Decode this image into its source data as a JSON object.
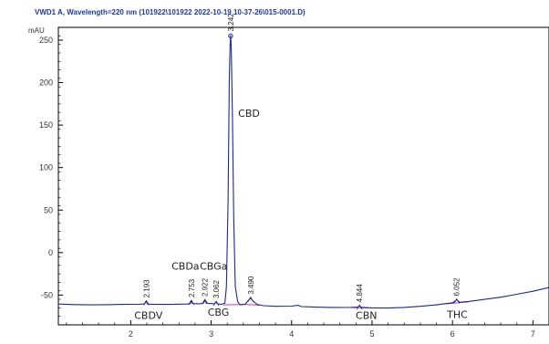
{
  "chart_data": {
    "type": "line",
    "title": "VWD1 A, Wavelength=220 nm (101922\\101922 2022-10-19 10-37-26\\015-0001.D)",
    "ylabel": "mAU",
    "xlabel": "",
    "xlim": [
      1.1,
      7.2
    ],
    "ylim": [
      -85,
      265
    ],
    "x_ticks": [
      2,
      3,
      4,
      5,
      6,
      7
    ],
    "y_ticks": [
      -50,
      0,
      50,
      100,
      150,
      200,
      250
    ],
    "grid": false,
    "colors": {
      "trace": "#1f2a7a",
      "baseline": "#cc33cc",
      "title": "#1f3a93",
      "axis": "#000000"
    },
    "series": [
      {
        "values": [
          [
            1.1,
            -60.5
          ],
          [
            1.3,
            -61.2
          ],
          [
            1.5,
            -61.5
          ],
          [
            1.7,
            -61.3
          ],
          [
            1.9,
            -61.0
          ],
          [
            2.1,
            -60.8
          ],
          [
            2.17,
            -60.4
          ],
          [
            2.19,
            -57.5
          ],
          [
            2.21,
            -60.6
          ],
          [
            2.3,
            -60.9
          ],
          [
            2.5,
            -61.0
          ],
          [
            2.7,
            -60.5
          ],
          [
            2.74,
            -60.2
          ],
          [
            2.753,
            -57.0
          ],
          [
            2.77,
            -60.0
          ],
          [
            2.85,
            -60.2
          ],
          [
            2.9,
            -59.8
          ],
          [
            2.922,
            -56.0
          ],
          [
            2.94,
            -59.6
          ],
          [
            3.0,
            -60.0
          ],
          [
            3.04,
            -60.2
          ],
          [
            3.062,
            -58.2
          ],
          [
            3.08,
            -60.4
          ],
          [
            3.13,
            -60.8
          ],
          [
            3.17,
            -59.5
          ],
          [
            3.19,
            -40.0
          ],
          [
            3.21,
            60.0
          ],
          [
            3.225,
            200.0
          ],
          [
            3.235,
            243.0
          ],
          [
            3.242,
            256.0
          ],
          [
            3.25,
            240.0
          ],
          [
            3.265,
            160.0
          ],
          [
            3.28,
            40.0
          ],
          [
            3.3,
            -40.0
          ],
          [
            3.33,
            -58.0
          ],
          [
            3.36,
            -61.5
          ],
          [
            3.42,
            -60.8
          ],
          [
            3.46,
            -56.5
          ],
          [
            3.49,
            -53.5
          ],
          [
            3.52,
            -57.0
          ],
          [
            3.57,
            -61.0
          ],
          [
            3.65,
            -62.5
          ],
          [
            3.8,
            -63.2
          ],
          [
            4.0,
            -63.0
          ],
          [
            4.08,
            -62.0
          ],
          [
            4.12,
            -63.5
          ],
          [
            4.3,
            -64.2
          ],
          [
            4.5,
            -64.5
          ],
          [
            4.7,
            -64.6
          ],
          [
            4.82,
            -64.2
          ],
          [
            4.844,
            -62.8
          ],
          [
            4.87,
            -64.4
          ],
          [
            5.0,
            -65.0
          ],
          [
            5.2,
            -65.2
          ],
          [
            5.4,
            -64.5
          ],
          [
            5.6,
            -63.2
          ],
          [
            5.8,
            -61.5
          ],
          [
            6.0,
            -59.0
          ],
          [
            6.052,
            -55.5
          ],
          [
            6.09,
            -58.5
          ],
          [
            6.2,
            -57.5
          ],
          [
            6.4,
            -55.0
          ],
          [
            6.6,
            -52.5
          ],
          [
            6.8,
            -49.0
          ],
          [
            7.0,
            -45.5
          ],
          [
            7.2,
            -41.0
          ]
        ]
      }
    ],
    "peaks": [
      {
        "rt": 2.193,
        "label": "2.193",
        "y": -57.5
      },
      {
        "rt": 2.753,
        "label": "2.753",
        "y": -57.0
      },
      {
        "rt": 2.922,
        "label": "2.922",
        "y": -56.0
      },
      {
        "rt": 3.062,
        "label": "3.062",
        "y": -58.2
      },
      {
        "rt": 3.242,
        "label": "3.242",
        "y": 256.0
      },
      {
        "rt": 3.49,
        "label": "3.490",
        "y": -53.5
      },
      {
        "rt": 4.844,
        "label": "4.844",
        "y": -62.8
      },
      {
        "rt": 6.052,
        "label": "6.052",
        "y": -55.5
      }
    ],
    "compounds": [
      {
        "name": "CBDV",
        "x": 2.22,
        "y": -78
      },
      {
        "name": "CBDa",
        "x": 2.68,
        "y": -20
      },
      {
        "name": "CBGa",
        "x": 3.03,
        "y": -20
      },
      {
        "name": "CBG",
        "x": 3.09,
        "y": -74
      },
      {
        "name": "CBD",
        "x": 3.47,
        "y": 160
      },
      {
        "name": "CBN",
        "x": 4.93,
        "y": -78
      },
      {
        "name": "THC",
        "x": 6.06,
        "y": -77
      }
    ]
  }
}
